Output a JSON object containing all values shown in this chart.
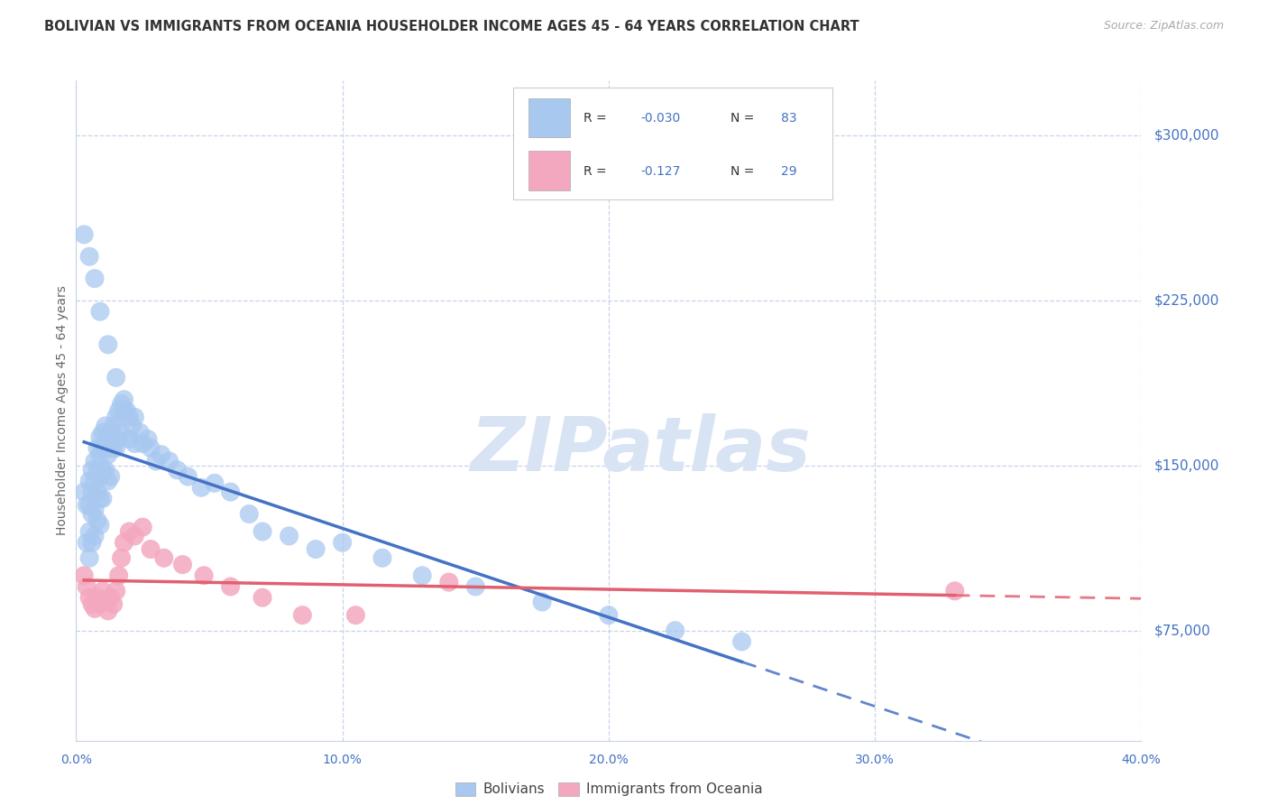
{
  "title": "BOLIVIAN VS IMMIGRANTS FROM OCEANIA HOUSEHOLDER INCOME AGES 45 - 64 YEARS CORRELATION CHART",
  "source": "Source: ZipAtlas.com",
  "ylabel": "Householder Income Ages 45 - 64 years",
  "x_min": 0.0,
  "x_max": 0.4,
  "y_min": 25000,
  "y_max": 325000,
  "y_ticks": [
    75000,
    150000,
    225000,
    300000
  ],
  "y_tick_labels": [
    "$75,000",
    "$150,000",
    "$225,000",
    "$300,000"
  ],
  "x_ticks": [
    0.0,
    0.1,
    0.2,
    0.3,
    0.4
  ],
  "x_tick_labels": [
    "0.0%",
    "10.0%",
    "20.0%",
    "30.0%",
    "40.0%"
  ],
  "blue_color": "#A8C8F0",
  "pink_color": "#F4A8C0",
  "blue_line_color": "#4472C4",
  "pink_line_color": "#E06070",
  "legend_text_color": "#4472C4",
  "background_color": "#FFFFFF",
  "grid_color": "#C8D4E8",
  "watermark_color": "#D8E4F4",
  "blue_scatter_x": [
    0.003,
    0.004,
    0.004,
    0.005,
    0.005,
    0.005,
    0.005,
    0.006,
    0.006,
    0.006,
    0.006,
    0.007,
    0.007,
    0.007,
    0.007,
    0.008,
    0.008,
    0.008,
    0.008,
    0.009,
    0.009,
    0.009,
    0.009,
    0.009,
    0.01,
    0.01,
    0.01,
    0.01,
    0.011,
    0.011,
    0.011,
    0.012,
    0.012,
    0.012,
    0.013,
    0.013,
    0.013,
    0.014,
    0.014,
    0.015,
    0.015,
    0.016,
    0.016,
    0.017,
    0.017,
    0.018,
    0.019,
    0.02,
    0.02,
    0.021,
    0.022,
    0.024,
    0.025,
    0.027,
    0.028,
    0.03,
    0.032,
    0.035,
    0.038,
    0.042,
    0.047,
    0.052,
    0.058,
    0.065,
    0.07,
    0.08,
    0.09,
    0.1,
    0.115,
    0.13,
    0.15,
    0.175,
    0.2,
    0.225,
    0.25,
    0.003,
    0.005,
    0.007,
    0.009,
    0.012,
    0.015,
    0.018,
    0.022
  ],
  "blue_scatter_y": [
    138000,
    132000,
    115000,
    143000,
    132000,
    120000,
    108000,
    148000,
    138000,
    128000,
    115000,
    152000,
    143000,
    130000,
    118000,
    158000,
    148000,
    138000,
    125000,
    163000,
    155000,
    145000,
    135000,
    123000,
    165000,
    158000,
    148000,
    135000,
    168000,
    158000,
    148000,
    162000,
    155000,
    143000,
    165000,
    158000,
    145000,
    168000,
    158000,
    172000,
    158000,
    175000,
    162000,
    178000,
    165000,
    180000,
    175000,
    172000,
    162000,
    168000,
    172000,
    165000,
    160000,
    162000,
    158000,
    152000,
    155000,
    152000,
    148000,
    145000,
    140000,
    142000,
    138000,
    128000,
    120000,
    118000,
    112000,
    115000,
    108000,
    100000,
    95000,
    88000,
    82000,
    75000,
    70000,
    255000,
    245000,
    235000,
    220000,
    205000,
    190000,
    175000,
    160000
  ],
  "pink_scatter_x": [
    0.003,
    0.004,
    0.005,
    0.006,
    0.007,
    0.008,
    0.009,
    0.01,
    0.011,
    0.012,
    0.013,
    0.014,
    0.015,
    0.016,
    0.017,
    0.018,
    0.02,
    0.022,
    0.025,
    0.028,
    0.033,
    0.04,
    0.048,
    0.058,
    0.07,
    0.085,
    0.105,
    0.14,
    0.33
  ],
  "pink_scatter_y": [
    100000,
    95000,
    90000,
    87000,
    85000,
    90000,
    87000,
    93000,
    88000,
    84000,
    90000,
    87000,
    93000,
    100000,
    108000,
    115000,
    120000,
    118000,
    122000,
    112000,
    108000,
    105000,
    100000,
    95000,
    90000,
    82000,
    82000,
    97000,
    93000
  ]
}
